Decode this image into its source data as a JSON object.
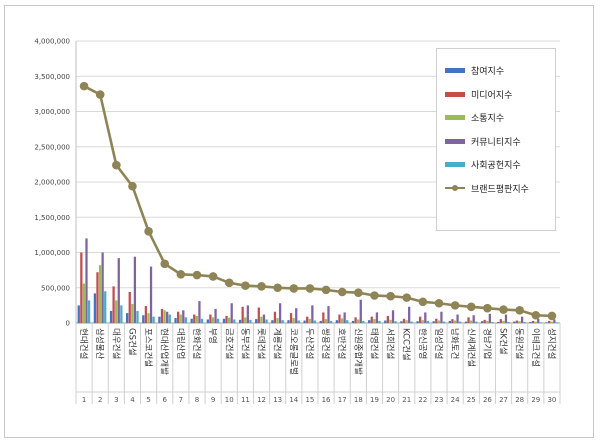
{
  "chart_data": {
    "type": "bar",
    "ylim": [
      0,
      4000000
    ],
    "y_ticks": [
      "0",
      "500,000",
      "1,000,000",
      "1,500,000",
      "2,000,000",
      "2,500,000",
      "3,000,000",
      "3,500,000",
      "4,000,000"
    ],
    "y_tick_values": [
      0,
      500000,
      1000000,
      1500000,
      2000000,
      2500000,
      3000000,
      3500000,
      4000000
    ],
    "grid": true,
    "legend_position": "top-right",
    "categories": [
      "현대건설",
      "삼성물산",
      "대우건설",
      "GS건설",
      "포스코건설",
      "현대산업개발",
      "대림산업",
      "한화건설",
      "부영",
      "금호건설",
      "동부건설",
      "롯데건설",
      "계룡건설",
      "코오롱글로벌",
      "두산건설",
      "쌍용건설",
      "호반건설",
      "신원종합개발",
      "태영건설",
      "서희건설",
      "KCC건설",
      "한신공영",
      "일성건설",
      "남화토건",
      "신세계건설",
      "경남기업",
      "SK건설",
      "동원건설",
      "이테크건설",
      "성지건설"
    ],
    "ranks": [
      "1",
      "2",
      "3",
      "4",
      "5",
      "6",
      "7",
      "8",
      "9",
      "10",
      "11",
      "12",
      "13",
      "14",
      "15",
      "16",
      "17",
      "18",
      "19",
      "20",
      "21",
      "22",
      "23",
      "24",
      "25",
      "26",
      "27",
      "28",
      "29",
      "30"
    ],
    "series": [
      {
        "name": "참여지수",
        "color": "#4472c4",
        "kind": "bar",
        "values": [
          250000,
          420000,
          170000,
          140000,
          110000,
          90000,
          70000,
          60000,
          50000,
          60000,
          45000,
          55000,
          40000,
          40000,
          35000,
          30000,
          40000,
          30000,
          40000,
          35000,
          25000,
          25000,
          25000,
          30000,
          20000,
          25000,
          15000,
          20000,
          15000,
          10000
        ]
      },
      {
        "name": "미디어지수",
        "color": "#c0504d",
        "kind": "bar",
        "values": [
          1000000,
          720000,
          520000,
          440000,
          240000,
          200000,
          160000,
          120000,
          120000,
          100000,
          230000,
          220000,
          160000,
          140000,
          90000,
          150000,
          120000,
          80000,
          90000,
          100000,
          60000,
          90000,
          60000,
          55000,
          80000,
          45000,
          55000,
          35000,
          30000,
          30000
        ]
      },
      {
        "name": "소통지수",
        "color": "#9bbb59",
        "kind": "bar",
        "values": [
          560000,
          820000,
          320000,
          270000,
          140000,
          180000,
          120000,
          100000,
          80000,
          75000,
          80000,
          90000,
          70000,
          70000,
          60000,
          55000,
          65000,
          50000,
          55000,
          45000,
          40000,
          40000,
          35000,
          35000,
          35000,
          30000,
          30000,
          25000,
          20000,
          20000
        ]
      },
      {
        "name": "커뮤니티지수",
        "color": "#8064a2",
        "kind": "bar",
        "values": [
          1200000,
          1000000,
          920000,
          940000,
          800000,
          160000,
          180000,
          310000,
          200000,
          280000,
          250000,
          120000,
          280000,
          210000,
          250000,
          240000,
          150000,
          330000,
          150000,
          180000,
          230000,
          150000,
          160000,
          120000,
          110000,
          130000,
          120000,
          90000,
          60000,
          50000
        ]
      },
      {
        "name": "사회공헌지수",
        "color": "#4bacc6",
        "kind": "bar",
        "values": [
          320000,
          450000,
          250000,
          170000,
          90000,
          120000,
          80000,
          60000,
          60000,
          50000,
          45000,
          50000,
          40000,
          35000,
          35000,
          30000,
          40000,
          30000,
          30000,
          25000,
          20000,
          30000,
          20000,
          20000,
          20000,
          15000,
          15000,
          15000,
          10000,
          10000
        ]
      },
      {
        "name": "브랜드평판지수",
        "color": "#8f8455",
        "kind": "line",
        "values": [
          3360000,
          3240000,
          2240000,
          1940000,
          1300000,
          840000,
          690000,
          680000,
          660000,
          570000,
          530000,
          520000,
          500000,
          490000,
          490000,
          470000,
          440000,
          430000,
          390000,
          380000,
          360000,
          300000,
          280000,
          250000,
          230000,
          210000,
          190000,
          180000,
          110000,
          100000
        ]
      }
    ]
  }
}
